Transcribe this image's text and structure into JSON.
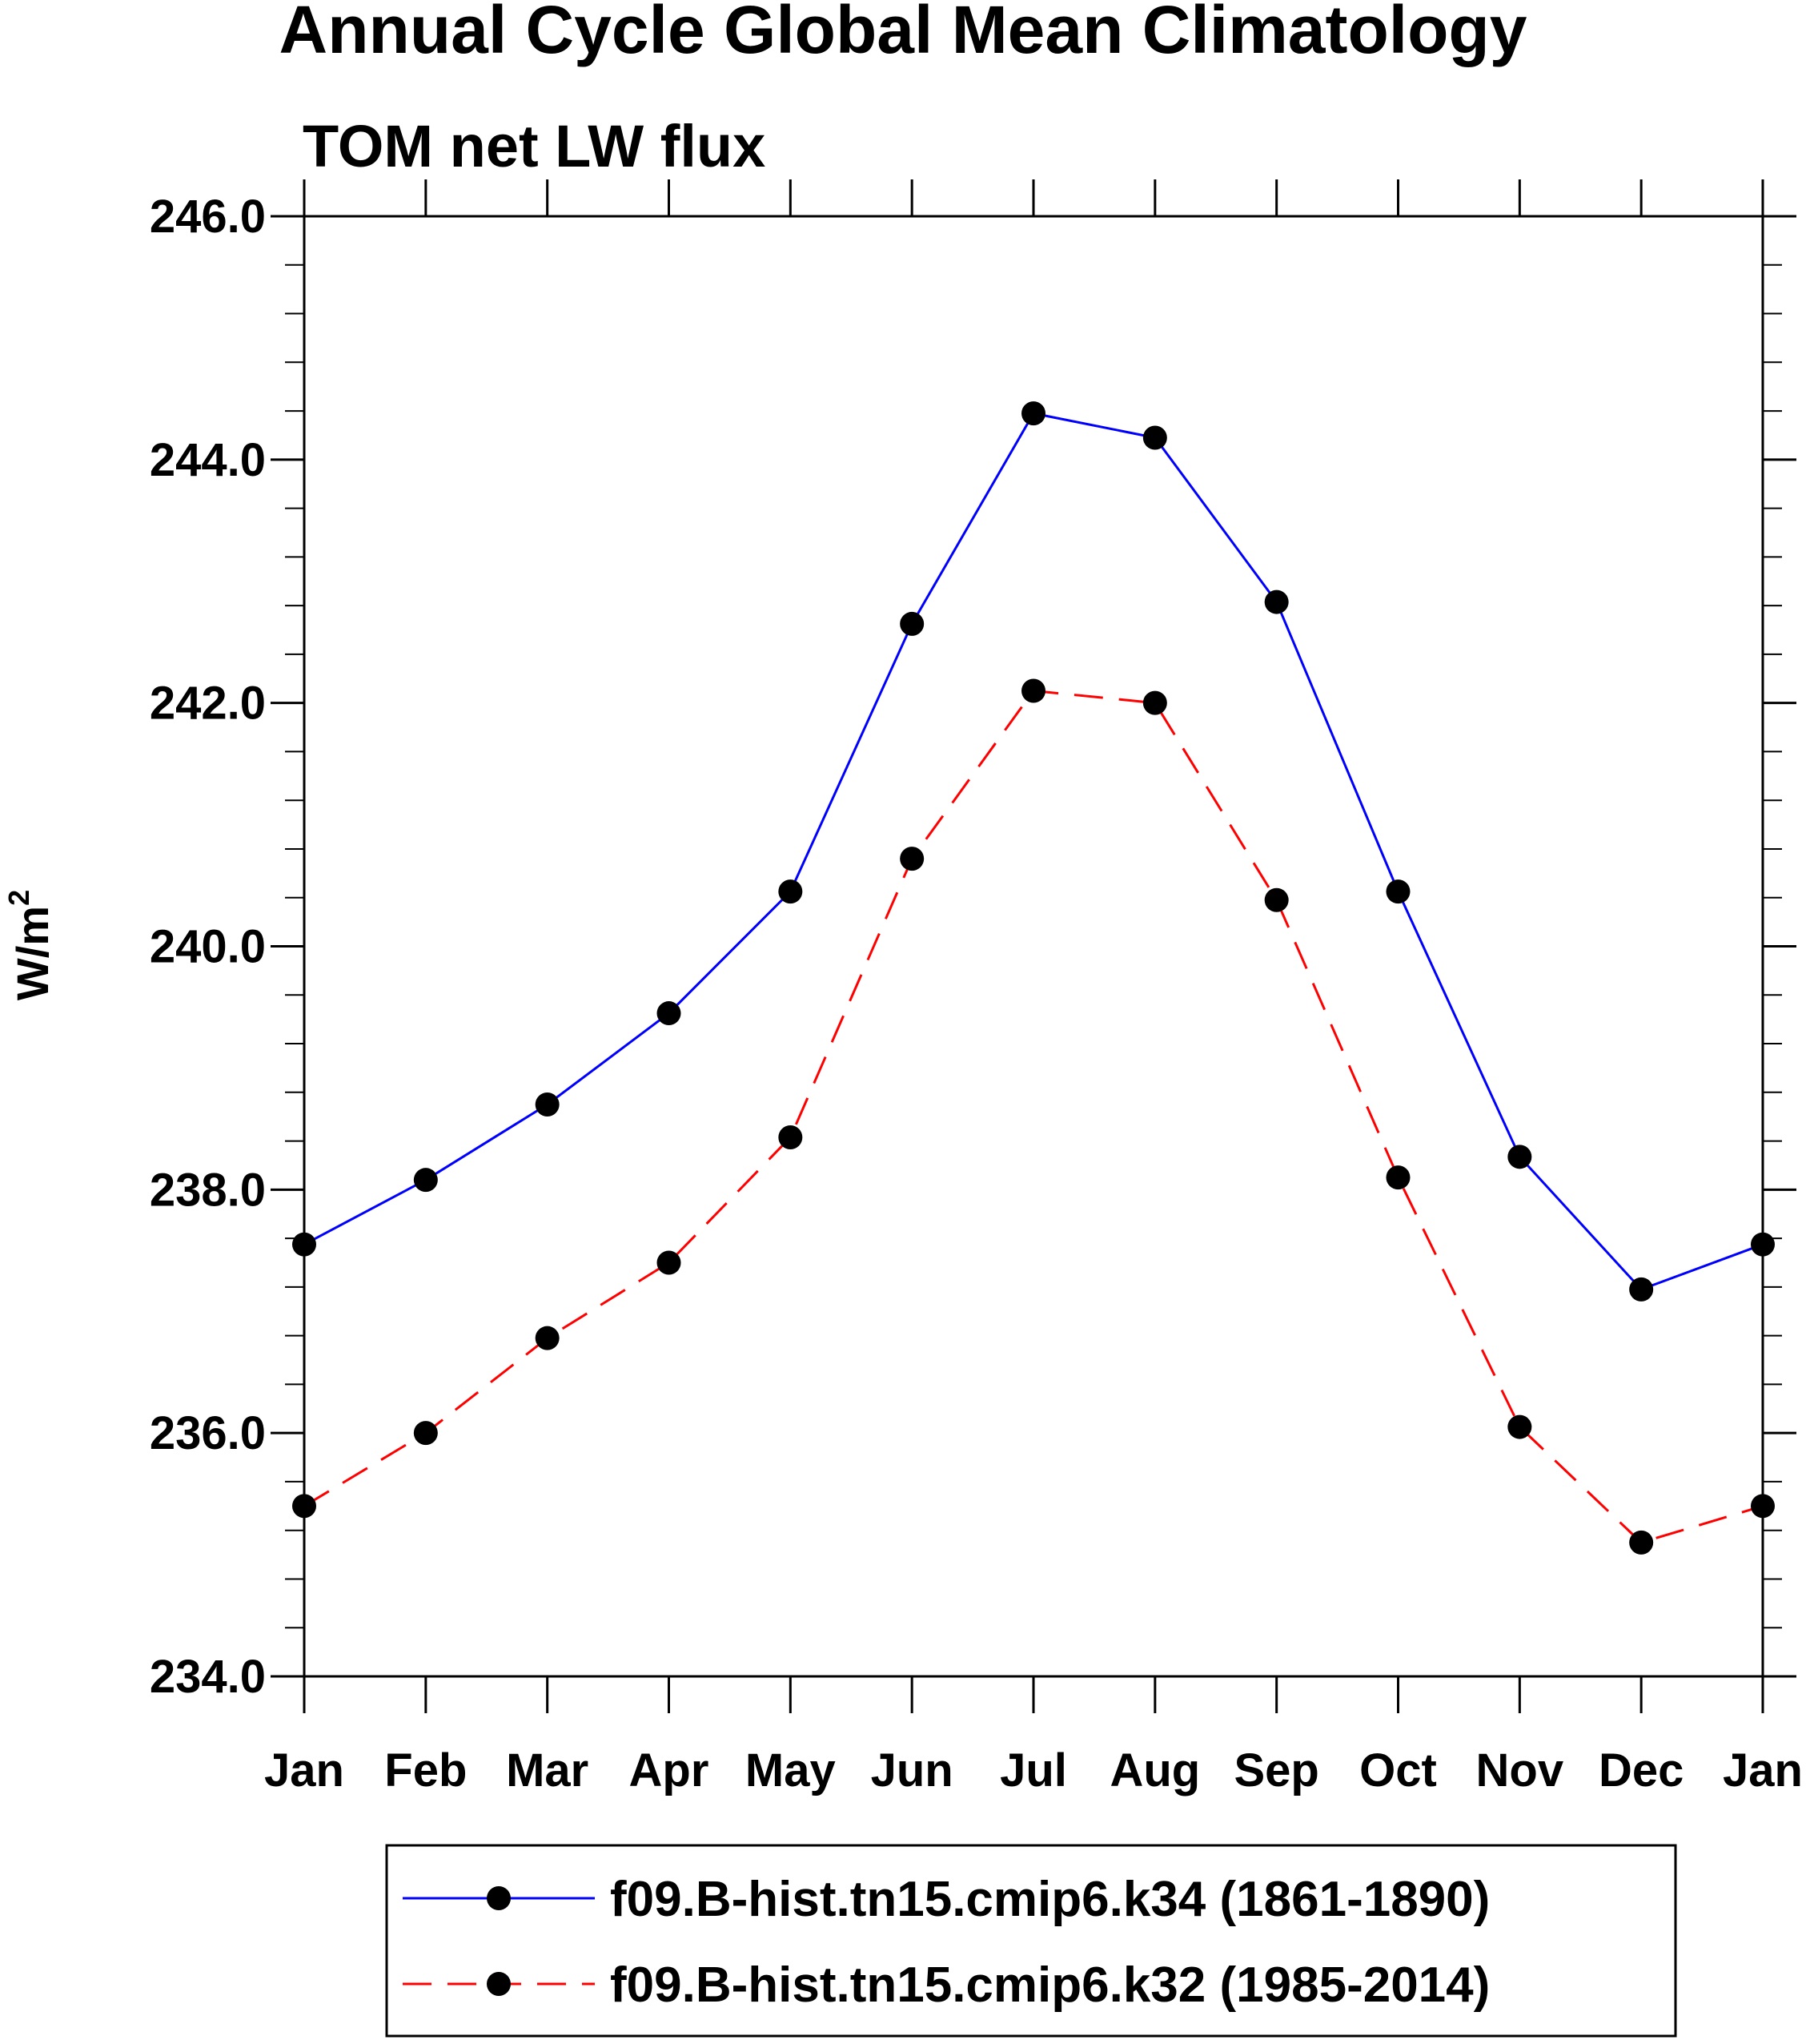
{
  "chart_data": {
    "type": "line",
    "title": "Annual Cycle Global Mean Climatology",
    "subtitle": "TOM net LW flux",
    "ylabel": "W/m",
    "ylabel_superscript": "2",
    "xlabel": "",
    "categories": [
      "Jan",
      "Feb",
      "Mar",
      "Apr",
      "May",
      "Jun",
      "Jul",
      "Aug",
      "Sep",
      "Oct",
      "Nov",
      "Dec",
      "Jan"
    ],
    "ylim": [
      234.0,
      246.0
    ],
    "yticks": [
      234.0,
      236.0,
      238.0,
      240.0,
      242.0,
      244.0,
      246.0
    ],
    "ytick_labels": [
      "234.0",
      "236.0",
      "238.0",
      "240.0",
      "242.0",
      "244.0",
      "246.0"
    ],
    "series": [
      {
        "name": "f09.B-hist.tn15.cmip6.k34 (1861-1890)",
        "color": "#0000ff",
        "dash": "solid",
        "values": [
          237.55,
          238.08,
          238.7,
          239.45,
          240.45,
          242.65,
          244.38,
          244.18,
          242.83,
          240.45,
          238.27,
          237.18,
          237.55
        ]
      },
      {
        "name": "f09.B-hist.tn15.cmip6.k32 (1985-2014)",
        "color": "#ff0000",
        "dash": "dashed",
        "values": [
          235.4,
          236.0,
          236.78,
          237.4,
          238.43,
          240.72,
          242.1,
          242.0,
          240.38,
          238.1,
          236.05,
          235.1,
          235.4
        ]
      }
    ],
    "legend": "bottom"
  }
}
